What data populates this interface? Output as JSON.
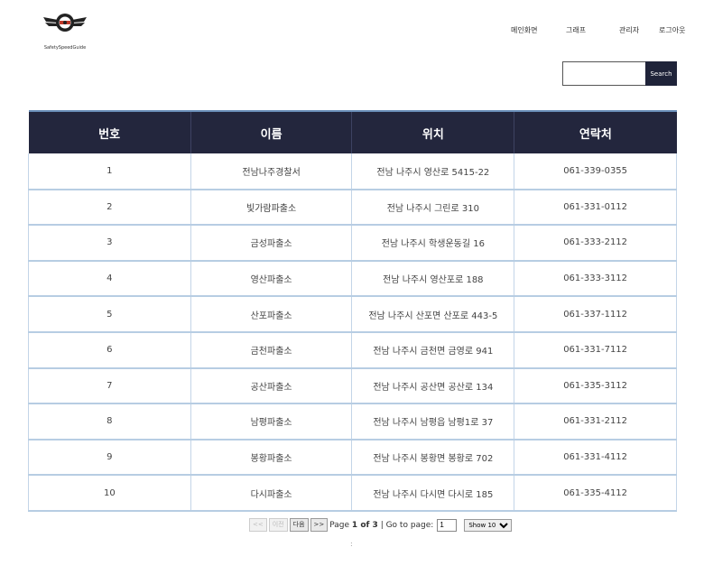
{
  "logo": {
    "text": "SafetySpeedGuide"
  },
  "nav": {
    "items": [
      "메인화면",
      "그래프",
      "관리자",
      "로그아웃"
    ]
  },
  "search": {
    "placeholder": "",
    "button": "Search"
  },
  "table": {
    "columns": [
      "번호",
      "이름",
      "위치",
      "연락처"
    ],
    "rows": [
      [
        "1",
        "전남나주경찰서",
        "전남 나주시 영산로 5415-22",
        "061-339-0355"
      ],
      [
        "2",
        "빛가람파출소",
        "전남 나주시 그린로 310",
        "061-331-0112"
      ],
      [
        "3",
        "금성파출소",
        "전남 나주시 학생운동길 16",
        "061-333-2112"
      ],
      [
        "4",
        "영산파출소",
        "전남 나주시 영산포로 188",
        "061-333-3112"
      ],
      [
        "5",
        "산포파출소",
        "전남 나주시 산포면 산포로 443-5",
        "061-337-1112"
      ],
      [
        "6",
        "금천파출소",
        "전남 나주시 금천면 금영로 941",
        "061-331-7112"
      ],
      [
        "7",
        "공산파출소",
        "전남 나주시 공산면 공산로 134",
        "061-335-3112"
      ],
      [
        "8",
        "남평파출소",
        "전남 나주시 남평읍 남평1로 37",
        "061-331-2112"
      ],
      [
        "9",
        "봉황파출소",
        "전남 나주시 봉황면 봉황로 702",
        "061-331-4112"
      ],
      [
        "10",
        "다시파출소",
        "전남 나주시 다시면 다시로 185",
        "061-335-4112"
      ]
    ]
  },
  "pager": {
    "first": "<<",
    "prev": "이전",
    "next": "다음",
    "last": ">>",
    "page_prefix": "Page",
    "page_status": "1 of 3",
    "goto_label": "| Go to page:",
    "goto_value": "1",
    "show_value": "Show 10"
  },
  "footer": {
    "dots": ":"
  }
}
